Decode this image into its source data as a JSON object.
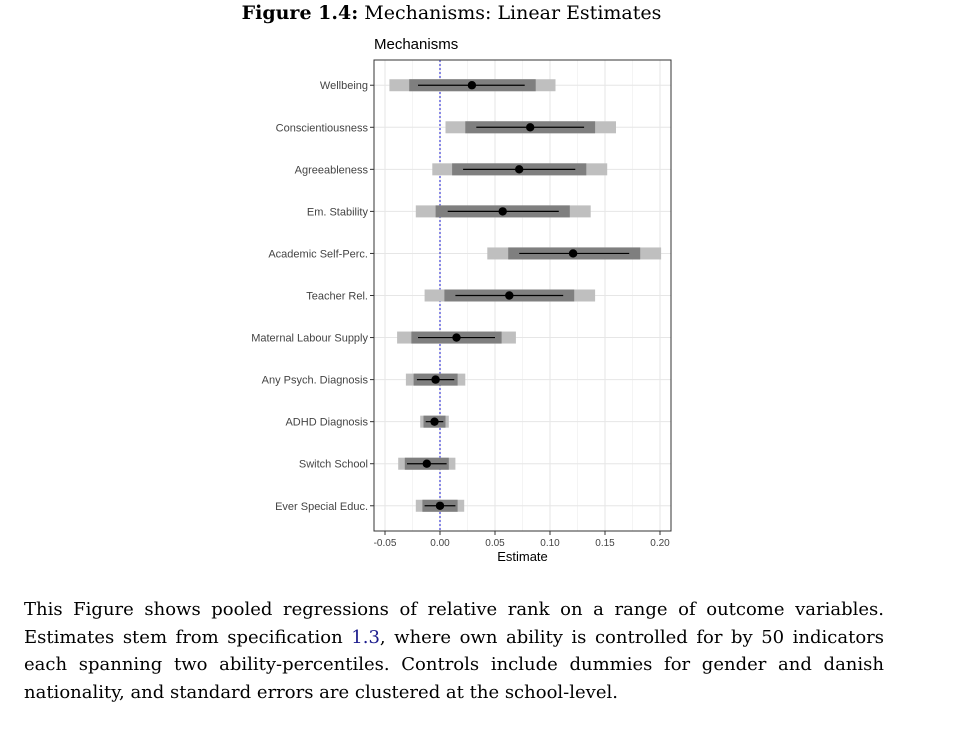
{
  "figure": {
    "number": "Figure 1.4:",
    "title": "Mechanisms: Linear Estimates"
  },
  "caption": {
    "before_ref": "This Figure shows pooled regressions of relative rank on a range of outcome variables. Estimates stem from specification ",
    "ref": "1.3",
    "after_ref": ", where own ability is controlled for by 50 indicators each spanning two ability-percentiles. Controls include dummies for gender and danish nationality, and standard errors are clustered at the school-level."
  },
  "chart_data": {
    "type": "scatter",
    "title": "Mechanisms",
    "xlabel": "Estimate",
    "ylabel": "",
    "xlim": [
      -0.06,
      0.21
    ],
    "xticks": [
      -0.05,
      0.0,
      0.05,
      0.1,
      0.15,
      0.2
    ],
    "xtick_labels": [
      "-0.05",
      "0.00",
      "0.05",
      "0.10",
      "0.15",
      "0.20"
    ],
    "reference_line": 0.0,
    "grid": true,
    "colors": {
      "outer_interval": "#bfbfbf",
      "inner_interval": "#7f7f7f",
      "whisker": "#000000",
      "point": "#000000",
      "reference_line": "#3b3bd6"
    },
    "categories": [
      "Wellbeing",
      "Conscientiousness",
      "Agreeableness",
      "Em. Stability",
      "Academic Self-Perc.",
      "Teacher Rel.",
      "Maternal Labour Supply",
      "Any Psych. Diagnosis",
      "ADHD Diagnosis",
      "Switch School",
      "Ever Special Educ."
    ],
    "estimates": [
      0.029,
      0.082,
      0.072,
      0.057,
      0.121,
      0.063,
      0.015,
      -0.004,
      -0.005,
      -0.012,
      0.0
    ],
    "outer": [
      [
        -0.046,
        0.105
      ],
      [
        0.005,
        0.16
      ],
      [
        -0.007,
        0.152
      ],
      [
        -0.022,
        0.137
      ],
      [
        0.043,
        0.201
      ],
      [
        -0.014,
        0.141
      ],
      [
        -0.039,
        0.069
      ],
      [
        -0.031,
        0.023
      ],
      [
        -0.018,
        0.008
      ],
      [
        -0.038,
        0.014
      ],
      [
        -0.022,
        0.022
      ]
    ],
    "inner": [
      [
        -0.028,
        0.087
      ],
      [
        0.023,
        0.141
      ],
      [
        0.011,
        0.133
      ],
      [
        -0.004,
        0.118
      ],
      [
        0.062,
        0.182
      ],
      [
        0.004,
        0.122
      ],
      [
        -0.026,
        0.056
      ],
      [
        -0.024,
        0.016
      ],
      [
        -0.015,
        0.005
      ],
      [
        -0.032,
        0.008
      ],
      [
        -0.016,
        0.016
      ]
    ],
    "whisker": [
      [
        -0.02,
        0.077
      ],
      [
        0.033,
        0.131
      ],
      [
        0.021,
        0.123
      ],
      [
        0.007,
        0.108
      ],
      [
        0.072,
        0.172
      ],
      [
        0.014,
        0.112
      ],
      [
        -0.02,
        0.05
      ],
      [
        -0.021,
        0.013
      ],
      [
        -0.013,
        0.003
      ],
      [
        -0.03,
        0.006
      ],
      [
        -0.014,
        0.014
      ]
    ]
  }
}
